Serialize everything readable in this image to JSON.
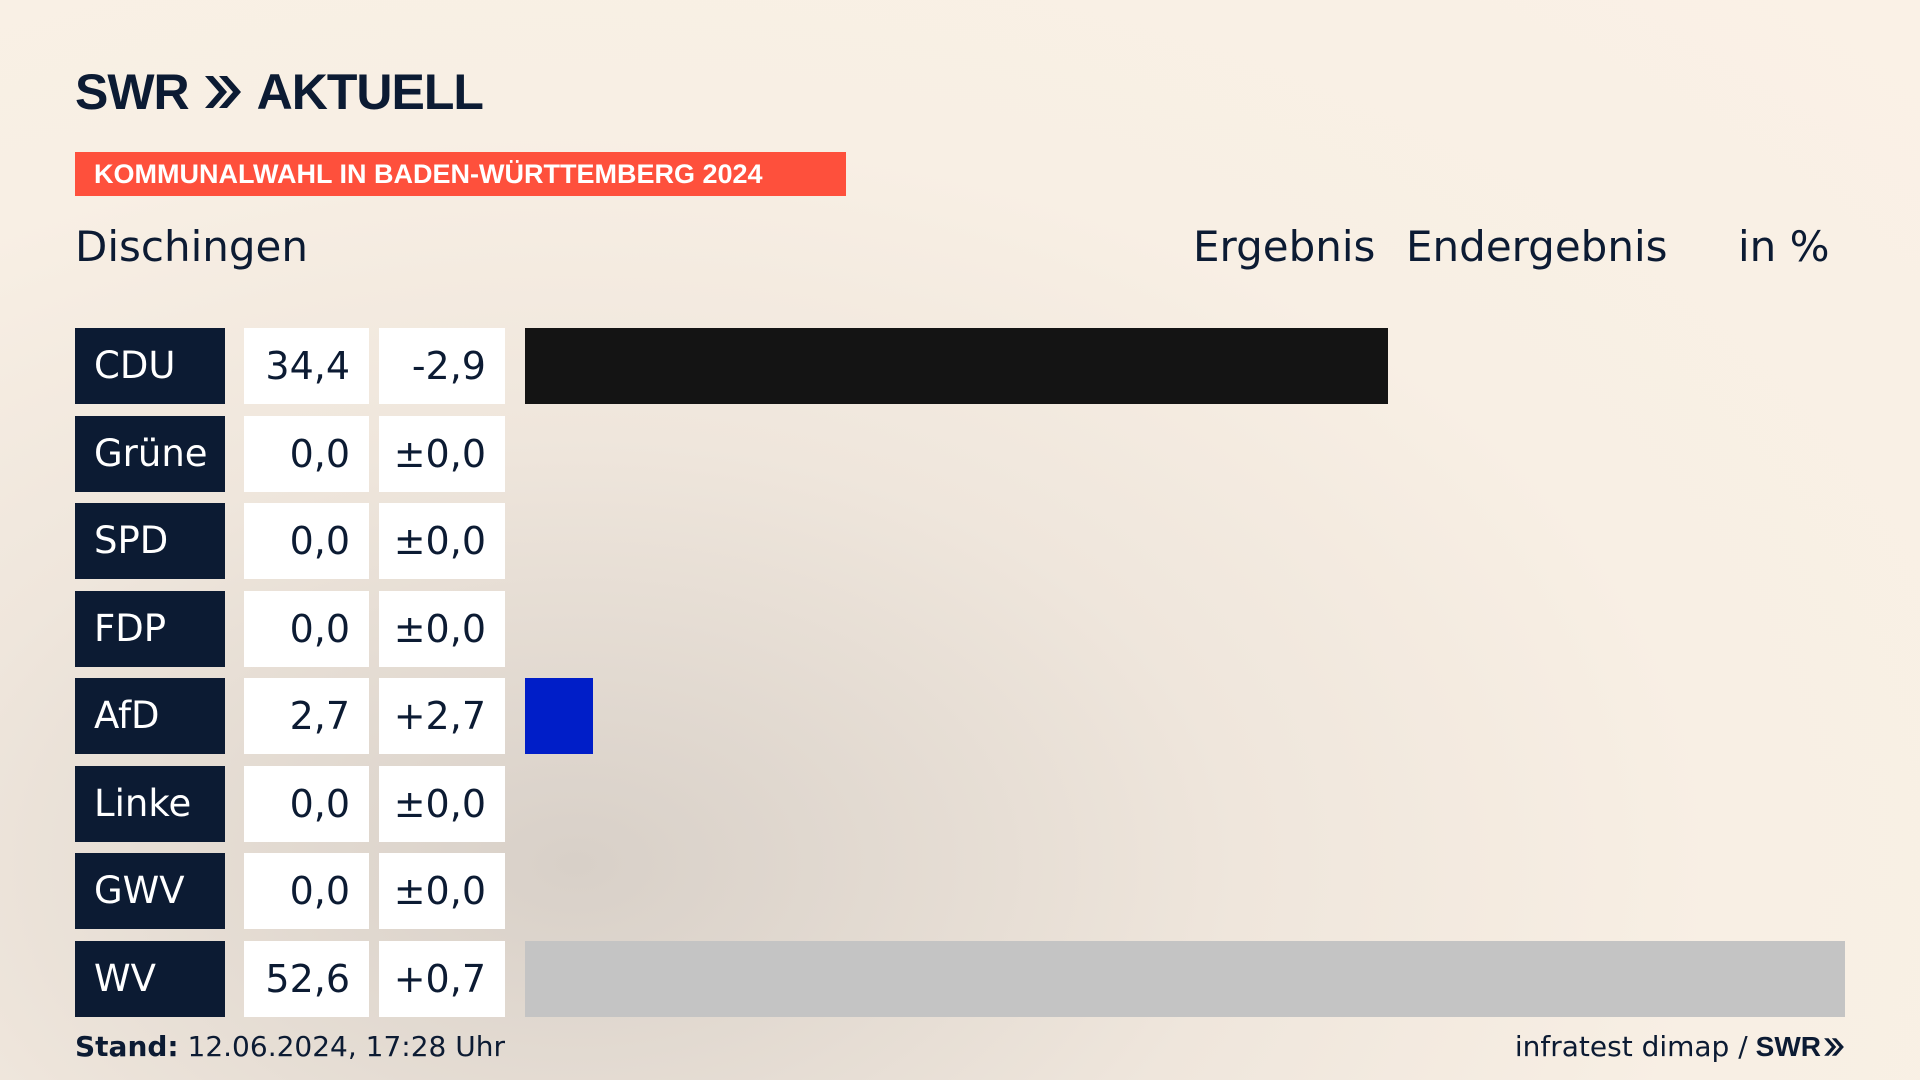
{
  "brand": {
    "logo_text_1": "SWR",
    "logo_text_2": "AKTUELL"
  },
  "banner": {
    "text": "KOMMUNALWAHL IN BADEN-WÜRTTEMBERG 2024"
  },
  "region": "Dischingen",
  "headers": {
    "ergebnis": "Ergebnis",
    "status": "Endergebnis",
    "unit": "in %"
  },
  "colors": {
    "navy": "#0c1b33",
    "accent": "#fe503c"
  },
  "chart_data": {
    "type": "bar",
    "orientation": "horizontal",
    "title": "Dischingen",
    "value_label": "in %",
    "max_value": 52.6,
    "categories": [
      "CDU",
      "Grüne",
      "SPD",
      "FDP",
      "AfD",
      "Linke",
      "GWV",
      "WV"
    ],
    "values": [
      34.4,
      0.0,
      0.0,
      0.0,
      2.7,
      0.0,
      0.0,
      52.6
    ],
    "rows": [
      {
        "party": "CDU",
        "share": "34,4",
        "diff": "-2,9",
        "value": 34.4,
        "color": "#141414"
      },
      {
        "party": "Grüne",
        "share": "0,0",
        "diff": "±0,0",
        "value": 0.0,
        "color": "#1a9e3c"
      },
      {
        "party": "SPD",
        "share": "0,0",
        "diff": "±0,0",
        "value": 0.0,
        "color": "#e3000f"
      },
      {
        "party": "FDP",
        "share": "0,0",
        "diff": "±0,0",
        "value": 0.0,
        "color": "#ffed00"
      },
      {
        "party": "AfD",
        "share": "2,7",
        "diff": "+2,7",
        "value": 2.7,
        "color": "#001ec8"
      },
      {
        "party": "Linke",
        "share": "0,0",
        "diff": "±0,0",
        "value": 0.0,
        "color": "#be3075"
      },
      {
        "party": "GWV",
        "share": "0,0",
        "diff": "±0,0",
        "value": 0.0,
        "color": "#9a9a9a"
      },
      {
        "party": "WV",
        "share": "52,6",
        "diff": "+0,7",
        "value": 52.6,
        "color": "#c4c4c4"
      }
    ]
  },
  "footer": {
    "stand_label": "Stand:",
    "timestamp": "12.06.2024, 17:28 Uhr",
    "source": "infratest dimap /",
    "source_logo": "SWR"
  }
}
